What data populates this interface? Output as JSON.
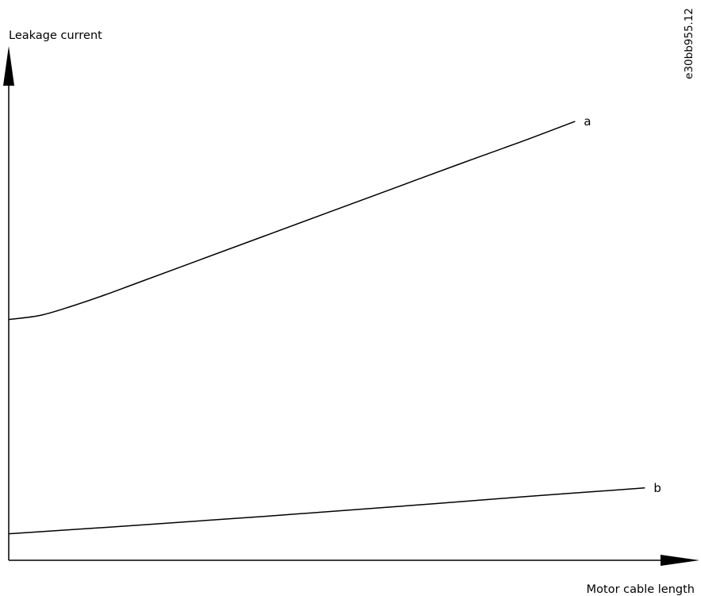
{
  "figure_id": "e30bb955.12",
  "chart_data": {
    "type": "line",
    "ylabel": "Leakage current",
    "xlabel": "Motor cable length",
    "xlim": [
      0,
      100
    ],
    "ylim": [
      0,
      100
    ],
    "grid": false,
    "series": [
      {
        "name": "a",
        "x": [
          0,
          5,
          10,
          15,
          20,
          30,
          40,
          50,
          60,
          70,
          80,
          88.4
        ],
        "y": [
          50.9,
          51.8,
          53.8,
          56.1,
          58.6,
          63.6,
          68.6,
          73.6,
          78.6,
          83.6,
          88.5,
          92.8
        ],
        "color": "#000000"
      },
      {
        "name": "b",
        "x": [
          0,
          20,
          40,
          60,
          80,
          99.3
        ],
        "y": [
          5.6,
          7.4,
          9.3,
          11.3,
          13.4,
          15.3
        ],
        "color": "#000000"
      }
    ]
  }
}
